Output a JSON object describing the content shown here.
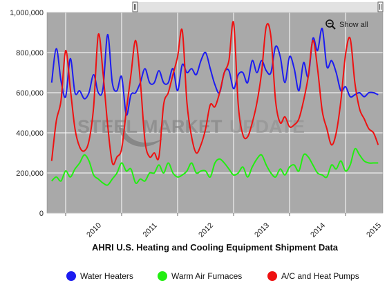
{
  "chart_data": {
    "type": "line",
    "title": "AHRI U.S. Heating and Cooling Equipment Shipment Data",
    "xlabel": "",
    "ylabel": "",
    "x_ticks": [
      "2010",
      "2011",
      "2012",
      "2013",
      "2014",
      "2015"
    ],
    "y_ticks": [
      "0",
      "200,000",
      "400,000",
      "600,000",
      "800,000",
      "1,000,000"
    ],
    "ylim": [
      0,
      1000000
    ],
    "x_start": "2009-09",
    "x_end": "2015-09",
    "grid": true,
    "legend_position": "bottom",
    "months": [
      "2009-10",
      "2009-11",
      "2009-12",
      "2010-01",
      "2010-02",
      "2010-03",
      "2010-04",
      "2010-05",
      "2010-06",
      "2010-07",
      "2010-08",
      "2010-09",
      "2010-10",
      "2010-11",
      "2010-12",
      "2011-01",
      "2011-02",
      "2011-03",
      "2011-04",
      "2011-05",
      "2011-06",
      "2011-07",
      "2011-08",
      "2011-09",
      "2011-10",
      "2011-11",
      "2011-12",
      "2012-01",
      "2012-02",
      "2012-03",
      "2012-04",
      "2012-05",
      "2012-06",
      "2012-07",
      "2012-08",
      "2012-09",
      "2012-10",
      "2012-11",
      "2012-12",
      "2013-01",
      "2013-02",
      "2013-03",
      "2013-04",
      "2013-05",
      "2013-06",
      "2013-07",
      "2013-08",
      "2013-09",
      "2013-10",
      "2013-11",
      "2013-12",
      "2014-01",
      "2014-02",
      "2014-03",
      "2014-04",
      "2014-05",
      "2014-06",
      "2014-07",
      "2014-08",
      "2014-09",
      "2014-10",
      "2014-11",
      "2014-12",
      "2015-01",
      "2015-02",
      "2015-03",
      "2015-04",
      "2015-05",
      "2015-06",
      "2015-07",
      "2015-08"
    ],
    "series": [
      {
        "name": "Water Heaters",
        "color": "#1c1cf0",
        "values": [
          650000,
          820000,
          660000,
          580000,
          770000,
          600000,
          610000,
          570000,
          600000,
          690000,
          600000,
          620000,
          890000,
          650000,
          610000,
          680000,
          490000,
          590000,
          600000,
          650000,
          720000,
          650000,
          650000,
          710000,
          650000,
          650000,
          720000,
          610000,
          740000,
          700000,
          720000,
          690000,
          760000,
          800000,
          720000,
          640000,
          600000,
          700000,
          710000,
          620000,
          690000,
          700000,
          650000,
          760000,
          700000,
          760000,
          710000,
          700000,
          830000,
          780000,
          650000,
          780000,
          720000,
          610000,
          750000,
          680000,
          870000,
          810000,
          920000,
          730000,
          760000,
          700000,
          610000,
          630000,
          580000,
          590000,
          600000,
          580000,
          600000,
          600000,
          590000
        ]
      },
      {
        "name": "Warm Air Furnaces",
        "color": "#22ee11",
        "values": [
          160000,
          180000,
          160000,
          210000,
          180000,
          220000,
          250000,
          290000,
          260000,
          190000,
          170000,
          150000,
          140000,
          170000,
          200000,
          250000,
          210000,
          220000,
          150000,
          170000,
          160000,
          200000,
          200000,
          240000,
          200000,
          250000,
          200000,
          180000,
          190000,
          210000,
          250000,
          200000,
          210000,
          210000,
          180000,
          250000,
          270000,
          250000,
          220000,
          190000,
          200000,
          230000,
          180000,
          230000,
          270000,
          290000,
          240000,
          200000,
          180000,
          220000,
          190000,
          230000,
          240000,
          210000,
          290000,
          280000,
          240000,
          200000,
          190000,
          180000,
          240000,
          220000,
          260000,
          210000,
          240000,
          320000,
          290000,
          260000,
          250000,
          250000,
          250000
        ]
      },
      {
        "name": "A/C and Heat Pumps",
        "color": "#ee1111",
        "values": [
          260000,
          460000,
          560000,
          810000,
          620000,
          420000,
          330000,
          310000,
          360000,
          530000,
          890000,
          700000,
          440000,
          250000,
          280000,
          320000,
          510000,
          690000,
          860000,
          660000,
          360000,
          280000,
          300000,
          280000,
          540000,
          600000,
          690000,
          780000,
          910000,
          550000,
          380000,
          300000,
          340000,
          420000,
          540000,
          530000,
          600000,
          700000,
          760000,
          950000,
          540000,
          390000,
          380000,
          450000,
          550000,
          700000,
          930000,
          880000,
          560000,
          450000,
          480000,
          430000,
          440000,
          470000,
          560000,
          680000,
          860000,
          720000,
          510000,
          420000,
          340000,
          400000,
          560000,
          790000,
          870000,
          650000,
          520000,
          470000,
          420000,
          400000,
          340000
        ]
      }
    ]
  },
  "toolbar": {
    "show_all_label": "Show all"
  },
  "watermark": {
    "left": "STEEL MARKET",
    "right": "UPDATE"
  },
  "colors": {
    "plot_bg": "#a9a9a9",
    "grid": "#ffffff"
  }
}
